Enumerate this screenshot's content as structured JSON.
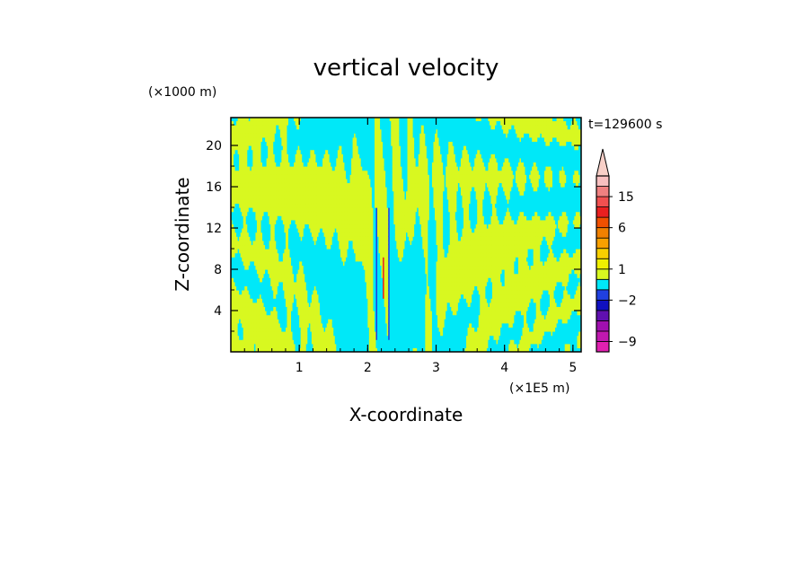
{
  "chart_data": {
    "type": "heatmap",
    "title": "vertical velocity",
    "xlabel": "X-coordinate",
    "ylabel": "Z-coordinate",
    "x_unit": "(×1E5 m)",
    "y_unit": "(×1000 m)",
    "time_label": "t=129600 s",
    "xlim": [
      0,
      5.12
    ],
    "ylim": [
      0,
      22.7
    ],
    "x_ticks": [
      1,
      2,
      3,
      4,
      5
    ],
    "y_ticks": [
      4,
      8,
      12,
      16,
      20
    ],
    "colorbar": {
      "tick_labels": [
        {
          "label": "15",
          "value": 15
        },
        {
          "label": "6",
          "value": 6
        },
        {
          "label": "1",
          "value": 1
        },
        {
          "label": "−2",
          "value": -2
        },
        {
          "label": "−9",
          "value": -9
        }
      ],
      "levels": [
        {
          "value": -10,
          "color": "#e020b0"
        },
        {
          "value": -8,
          "color": "#c018b0"
        },
        {
          "value": -6,
          "color": "#a010b0"
        },
        {
          "value": -4,
          "color": "#6010b0"
        },
        {
          "value": -3,
          "color": "#1010c0"
        },
        {
          "value": -2,
          "color": "#2040e0"
        },
        {
          "value": -1,
          "color": "#00e8f8"
        },
        {
          "value": 0,
          "color": "#d8f820"
        },
        {
          "value": 1,
          "color": "#f0f000"
        },
        {
          "value": 2,
          "color": "#f8d000"
        },
        {
          "value": 3,
          "color": "#f8a000"
        },
        {
          "value": 5,
          "color": "#f08000"
        },
        {
          "value": 8,
          "color": "#f05000"
        },
        {
          "value": 11,
          "color": "#e82020"
        },
        {
          "value": 14,
          "color": "#f05050"
        },
        {
          "value": 18,
          "color": "#f08080"
        },
        {
          "value": 22,
          "color": "#f8c0c0"
        }
      ],
      "extend_top_color": "#f8d0c8"
    },
    "dominant_fields": {
      "positive_color": "#d8f820",
      "negative_color": "#00e8f8",
      "strong_negative_color": "#2040e0",
      "strong_positive_color": "#e82020"
    }
  }
}
